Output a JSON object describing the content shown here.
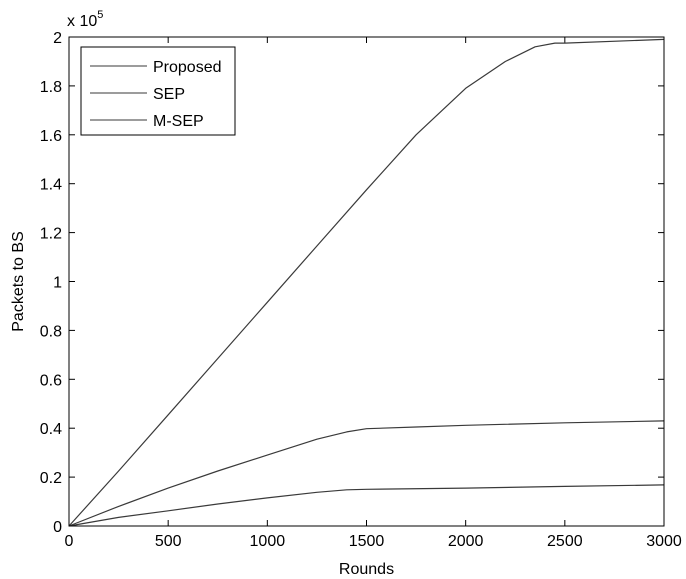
{
  "chart_data": {
    "type": "line",
    "title": "",
    "xlabel": "Rounds",
    "ylabel": "Packets to BS",
    "y_multiplier_label": {
      "base": "x 10",
      "exp": "5"
    },
    "xlim": [
      0,
      3000
    ],
    "ylim": [
      0,
      2
    ],
    "xticks": [
      "0",
      "500",
      "1000",
      "1500",
      "2000",
      "2500",
      "3000"
    ],
    "yticks": [
      "0",
      "0.2",
      "0.4",
      "0.6",
      "0.8",
      "1",
      "1.2",
      "1.4",
      "1.6",
      "1.8",
      "2"
    ],
    "grid": false,
    "legend_position": "top-left",
    "series": [
      {
        "name": "Proposed",
        "color": "#3a3a3a",
        "x": [
          0,
          250,
          500,
          750,
          1000,
          1250,
          1500,
          1750,
          2000,
          2200,
          2350,
          2450,
          2500,
          3000
        ],
        "y": [
          0,
          0.225,
          0.455,
          0.685,
          0.915,
          1.145,
          1.375,
          1.6,
          1.79,
          1.9,
          1.96,
          1.975,
          1.975,
          1.99
        ]
      },
      {
        "name": "SEP",
        "color": "#3a3a3a",
        "x": [
          0,
          250,
          500,
          750,
          1000,
          1250,
          1400,
          1500,
          2000,
          2500,
          3000
        ],
        "y": [
          0,
          0.035,
          0.062,
          0.09,
          0.115,
          0.138,
          0.148,
          0.15,
          0.155,
          0.162,
          0.168
        ]
      },
      {
        "name": "M-SEP",
        "color": "#3a3a3a",
        "x": [
          0,
          250,
          500,
          750,
          1000,
          1250,
          1400,
          1500,
          1750,
          2000,
          2500,
          3000
        ],
        "y": [
          0,
          0.08,
          0.155,
          0.225,
          0.29,
          0.355,
          0.385,
          0.398,
          0.405,
          0.412,
          0.422,
          0.43
        ]
      }
    ]
  }
}
